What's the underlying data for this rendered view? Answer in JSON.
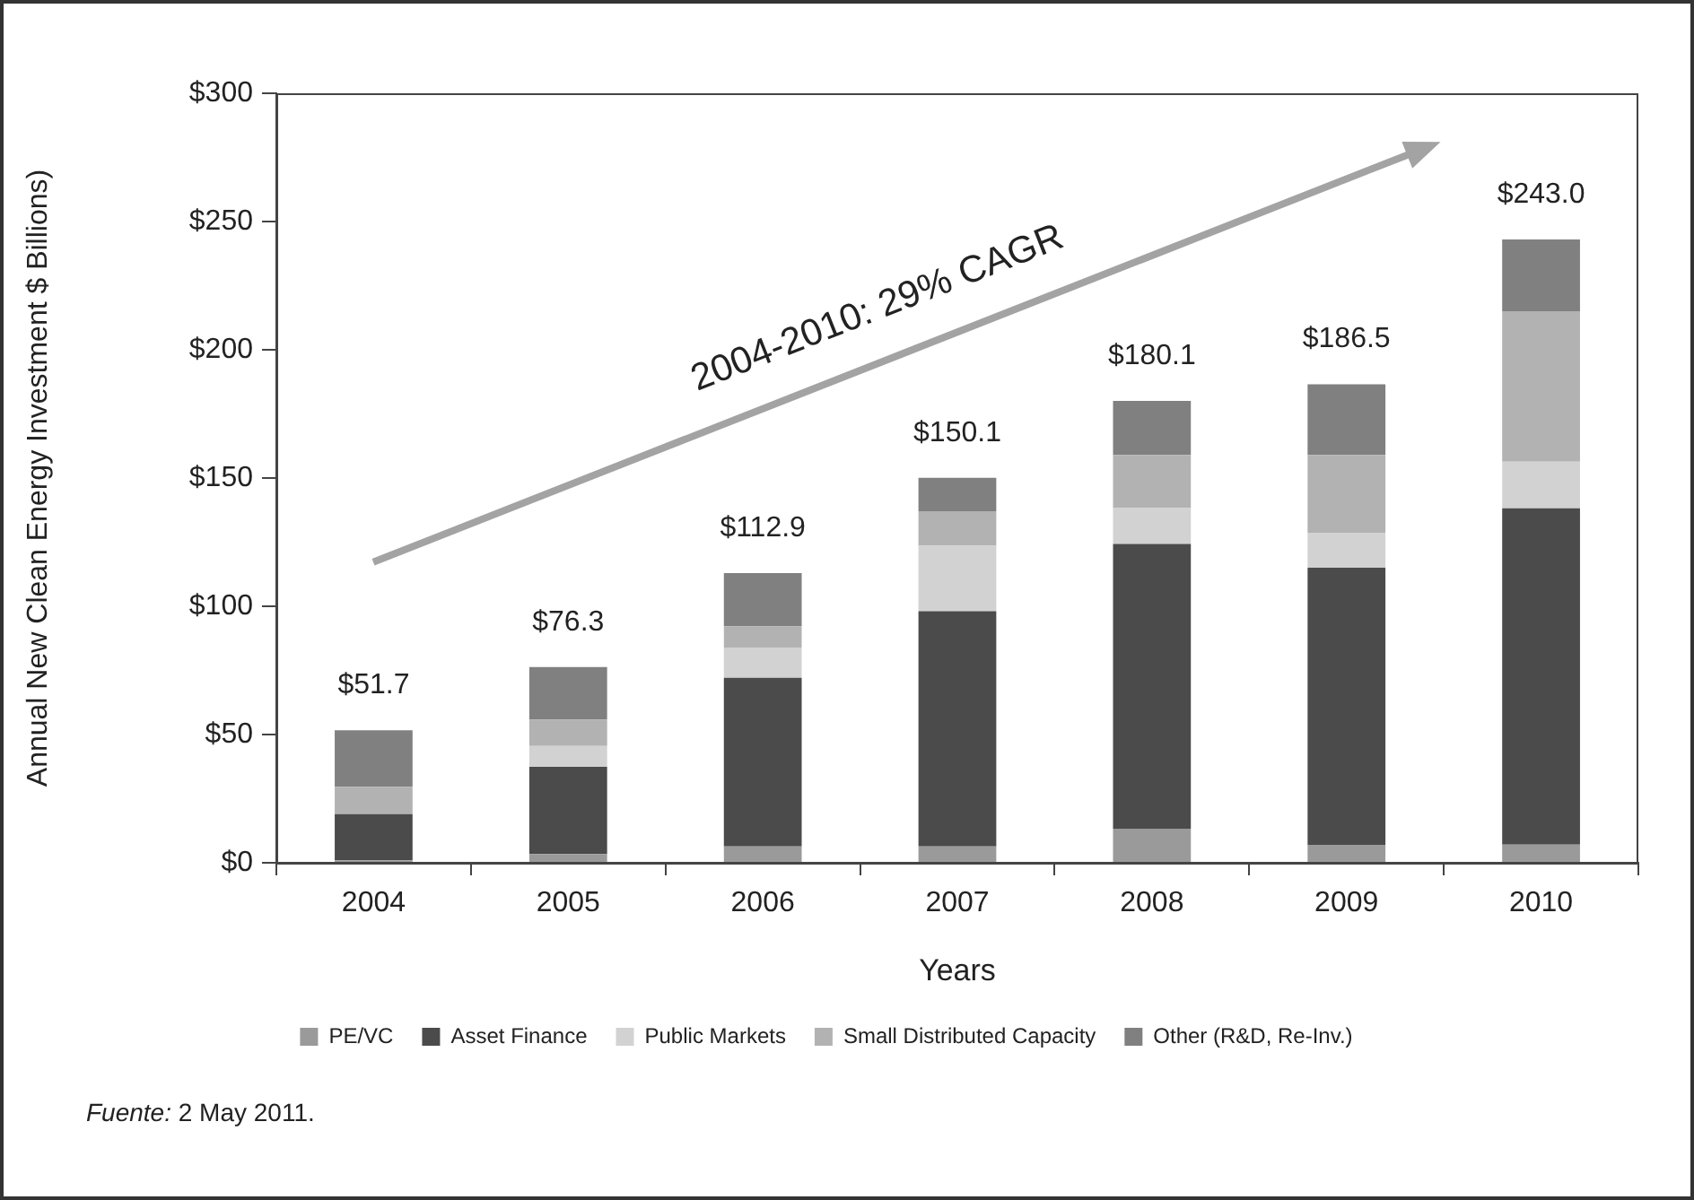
{
  "chart_data": {
    "type": "bar",
    "stacked": true,
    "xlabel": "Years",
    "ylabel": "Annual New Clean Energy Investment $ Billions)",
    "categories": [
      "2004",
      "2005",
      "2006",
      "2007",
      "2008",
      "2009",
      "2010"
    ],
    "series": [
      {
        "name": "PE/VC",
        "color": "#9a9a9a",
        "values": [
          1,
          3.4,
          6.4,
          6.4,
          13.3,
          7.0,
          7.1
        ]
      },
      {
        "name": "Asset Finance",
        "color": "#4b4b4b",
        "values": [
          18,
          34,
          65.7,
          91.7,
          111.0,
          108.0,
          131.1
        ]
      },
      {
        "name": "Public Markets",
        "color": "#d2d2d2",
        "values": [
          0,
          8.1,
          11.8,
          25.5,
          14.0,
          13.7,
          18.2
        ]
      },
      {
        "name": "Small Distributed Capacity",
        "color": "#b2b2b2",
        "values": [
          10.6,
          10.4,
          8.3,
          13.5,
          20.7,
          30.3,
          58.6
        ]
      },
      {
        "name": "Other (R&D, Re-Inv.)",
        "color": "#808080",
        "values": [
          22.1,
          20.4,
          20.7,
          13.0,
          21.1,
          27.5,
          28.0
        ]
      }
    ],
    "ylim": [
      0,
      300
    ],
    "yticks": [
      {
        "value": 0,
        "label": "$0"
      },
      {
        "value": 50,
        "label": "$50"
      },
      {
        "value": 100,
        "label": "$100"
      },
      {
        "value": 150,
        "label": "$150"
      },
      {
        "value": 200,
        "label": "$200"
      },
      {
        "value": 250,
        "label": "$250"
      },
      {
        "value": 300,
        "label": "$300"
      }
    ],
    "totals": [
      "$51.7",
      "$76.3",
      "$112.9",
      "$150.1",
      "$180.1",
      "$186.5",
      "$243.0"
    ],
    "legend": "bottom",
    "annotations": [
      "2004-2010: 29% CAGR",
      "Fuente: 2 May 2011."
    ]
  }
}
